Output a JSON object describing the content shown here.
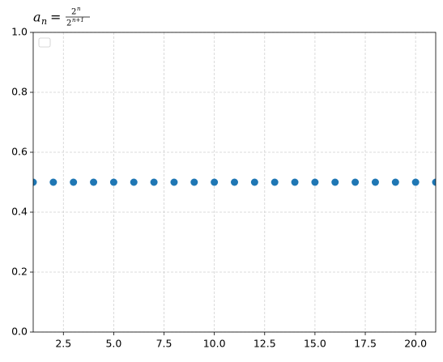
{
  "chart_data": {
    "type": "scatter",
    "title": {
      "lhs": "a",
      "lhs_sub": "n",
      "relation": "=",
      "num_base": "2",
      "num_exp": "n",
      "den_base": "2",
      "den_exp": "n+1"
    },
    "x": [
      1,
      2,
      3,
      4,
      5,
      6,
      7,
      8,
      9,
      10,
      11,
      12,
      13,
      14,
      15,
      16,
      17,
      18,
      19,
      20,
      21
    ],
    "values": [
      0.5,
      0.5,
      0.5,
      0.5,
      0.5,
      0.5,
      0.5,
      0.5,
      0.5,
      0.5,
      0.5,
      0.5,
      0.5,
      0.5,
      0.5,
      0.5,
      0.5,
      0.5,
      0.5,
      0.5,
      0.5
    ],
    "color": "#1f77b4",
    "xlim": [
      1,
      21
    ],
    "ylim": [
      0,
      1
    ],
    "xticks": [
      2.5,
      {
        "value": 5,
        "label": "5.0"
      },
      7.5,
      {
        "value": 10,
        "label": "10.0"
      },
      12.5,
      {
        "value": 15,
        "label": "15.0"
      },
      17.5,
      {
        "value": 20,
        "label": "20.0"
      }
    ],
    "yticks": [
      {
        "value": 0,
        "label": "0.0"
      },
      0.2,
      0.4,
      0.6,
      0.8,
      {
        "value": 1,
        "label": "1.0"
      }
    ],
    "grid": true,
    "legend": "upper left"
  }
}
